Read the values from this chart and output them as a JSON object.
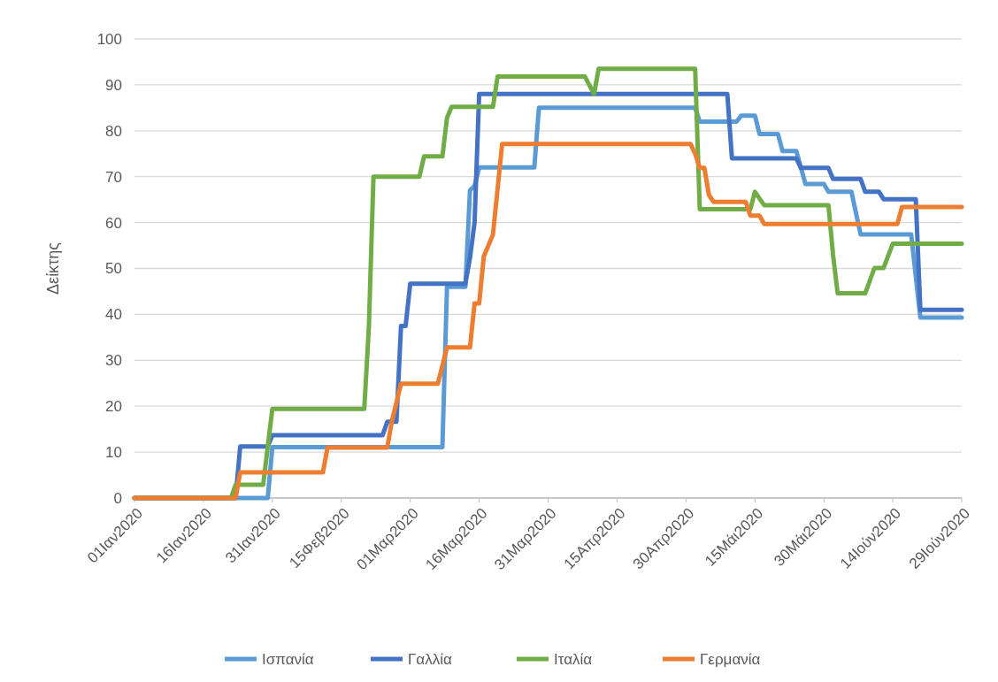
{
  "chart_data": {
    "type": "line",
    "ylabel": "Δείκτης",
    "xlim": [
      "2020-01-01",
      "2020-06-29"
    ],
    "xticks": [
      {
        "value": "2020-01-01",
        "label": "01Ιαν2020"
      },
      {
        "value": "2020-01-16",
        "label": "16Ιαν2020"
      },
      {
        "value": "2020-01-31",
        "label": "31Ιαν2020"
      },
      {
        "value": "2020-02-15",
        "label": "15Φεβ2020"
      },
      {
        "value": "2020-03-01",
        "label": "01Μαρ2020"
      },
      {
        "value": "2020-03-16",
        "label": "16Μαρ2020"
      },
      {
        "value": "2020-03-31",
        "label": "31Μαρ2020"
      },
      {
        "value": "2020-04-15",
        "label": "15Απρ2020"
      },
      {
        "value": "2020-04-30",
        "label": "30Απρ2020"
      },
      {
        "value": "2020-05-15",
        "label": "15Μάι2020"
      },
      {
        "value": "2020-05-30",
        "label": "30Μάι2020"
      },
      {
        "value": "2020-06-14",
        "label": "14Ιούν2020"
      },
      {
        "value": "2020-06-29",
        "label": "29Ιούν2020"
      }
    ],
    "ylim": [
      0,
      100
    ],
    "yticks": [
      0,
      10,
      20,
      30,
      40,
      50,
      60,
      70,
      80,
      90,
      100
    ],
    "grid": "y",
    "legend": "bottom",
    "marker": "none",
    "line_style": "solid",
    "series": [
      {
        "name": "Ισπανία",
        "color": "#5b9bd5",
        "x": [
          "2020-01-01",
          "2020-01-30",
          "2020-01-31",
          "2020-03-08",
          "2020-03-09",
          "2020-03-13",
          "2020-03-14",
          "2020-03-15",
          "2020-03-16",
          "2020-03-28",
          "2020-03-29",
          "2020-05-02",
          "2020-05-03",
          "2020-05-11",
          "2020-05-12",
          "2020-05-15",
          "2020-05-16",
          "2020-05-20",
          "2020-05-21",
          "2020-05-24",
          "2020-05-26",
          "2020-05-30",
          "2020-05-31",
          "2020-06-05",
          "2020-06-07",
          "2020-06-18",
          "2020-06-20",
          "2020-06-29"
        ],
        "values": [
          0,
          0,
          11.1,
          11.1,
          46,
          46,
          67,
          68,
          72,
          72,
          85,
          85,
          82,
          82,
          83.3,
          83.3,
          79.3,
          79.3,
          75.6,
          75.6,
          68.4,
          68.4,
          66.7,
          66.7,
          57.4,
          57.4,
          39.3,
          39.3
        ]
      },
      {
        "name": "Γαλλία",
        "color": "#4472c4",
        "x": [
          "2020-01-01",
          "2020-01-23",
          "2020-01-24",
          "2020-01-30",
          "2020-01-31",
          "2020-02-24",
          "2020-02-25",
          "2020-02-27",
          "2020-02-28",
          "2020-02-29",
          "2020-03-01",
          "2020-03-13",
          "2020-03-14",
          "2020-03-15",
          "2020-03-16",
          "2020-05-09",
          "2020-05-10",
          "2020-05-24",
          "2020-05-25",
          "2020-05-31",
          "2020-06-01",
          "2020-06-07",
          "2020-06-08",
          "2020-06-11",
          "2020-06-12",
          "2020-06-19",
          "2020-06-20",
          "2020-06-29"
        ],
        "values": [
          0,
          0,
          11.2,
          11.2,
          13.7,
          13.7,
          16.6,
          16.6,
          37.5,
          37.5,
          46.7,
          46.7,
          52.3,
          60,
          88,
          88,
          74,
          74,
          71.9,
          71.9,
          69.5,
          69.5,
          66.7,
          66.7,
          65.1,
          65.1,
          41,
          41
        ]
      },
      {
        "name": "Ιταλία",
        "color": "#70ad47",
        "x": [
          "2020-01-01",
          "2020-01-22",
          "2020-01-23",
          "2020-01-29",
          "2020-01-31",
          "2020-02-20",
          "2020-02-21",
          "2020-02-22",
          "2020-03-03",
          "2020-03-04",
          "2020-03-08",
          "2020-03-09",
          "2020-03-10",
          "2020-03-19",
          "2020-03-20",
          "2020-04-08",
          "2020-04-10",
          "2020-04-11",
          "2020-05-02",
          "2020-05-03",
          "2020-05-14",
          "2020-05-15",
          "2020-05-17",
          "2020-05-31",
          "2020-06-01",
          "2020-06-02",
          "2020-06-08",
          "2020-06-10",
          "2020-06-12",
          "2020-06-14",
          "2020-06-29"
        ],
        "values": [
          0,
          0,
          2.9,
          2.9,
          19.4,
          19.4,
          37.2,
          70,
          70,
          74.4,
          74.4,
          82.8,
          85.2,
          85.2,
          91.8,
          91.8,
          88,
          93.5,
          93.5,
          62.9,
          62.9,
          66.7,
          63.8,
          63.8,
          53,
          44.6,
          44.6,
          50.1,
          50.1,
          55.4,
          55.4
        ]
      },
      {
        "name": "Γερμανία",
        "color": "#ed7d31",
        "x": [
          "2020-01-01",
          "2020-01-23",
          "2020-01-24",
          "2020-02-11",
          "2020-02-12",
          "2020-02-25",
          "2020-02-26",
          "2020-02-28",
          "2020-03-07",
          "2020-03-09",
          "2020-03-14",
          "2020-03-15",
          "2020-03-16",
          "2020-03-17",
          "2020-03-19",
          "2020-03-21",
          "2020-05-01",
          "2020-05-02",
          "2020-05-03",
          "2020-05-04",
          "2020-05-05",
          "2020-05-06",
          "2020-05-13",
          "2020-05-14",
          "2020-05-16",
          "2020-05-17",
          "2020-06-15",
          "2020-06-16",
          "2020-06-29"
        ],
        "values": [
          0,
          0,
          5.6,
          5.6,
          11,
          11,
          16.7,
          24.9,
          24.9,
          32.8,
          32.8,
          42.4,
          42.4,
          52.6,
          57.4,
          77.1,
          77.1,
          75,
          71.9,
          71.9,
          66,
          64.5,
          64.5,
          61.5,
          61.5,
          59.7,
          59.7,
          63.4,
          63.4
        ]
      }
    ]
  }
}
